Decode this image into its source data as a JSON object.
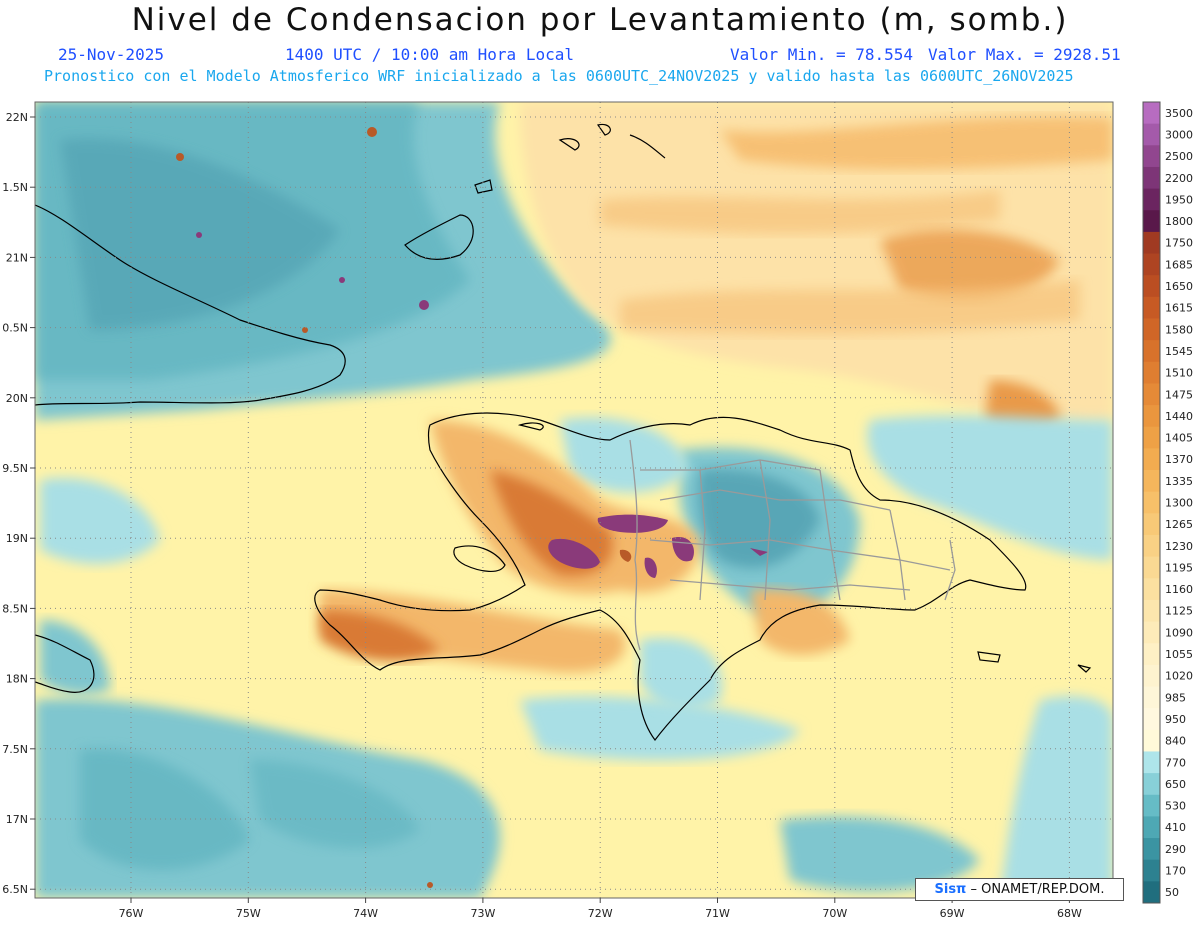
{
  "title": "Nivel de Condensacion por Levantamiento (m, somb.)",
  "header": {
    "date": "25-Nov-2025",
    "time": "1400 UTC / 10:00 am Hora Local",
    "min_label": "Valor Min. = 78.554",
    "max_label": "Valor Max. = 2928.51",
    "forecast_line": "Pronostico con el Modelo Atmosferico WRF inicializado a las 0600UTC_24NOV2025 y valido hasta las  0600UTC_26NOV2025"
  },
  "credit": {
    "brand": "Sisπ",
    "text": " – ONAMET/REP.DOM."
  },
  "axes": {
    "lat_labels": [
      "22N",
      "1.5N",
      "21N",
      "0.5N",
      "20N",
      "9.5N",
      "19N",
      "8.5N",
      "18N",
      "7.5N",
      "17N",
      "6.5N"
    ],
    "lon_labels": [
      "76W",
      "75W",
      "74W",
      "73W",
      "72W",
      "71W",
      "70W",
      "69W",
      "68W"
    ]
  },
  "legend": {
    "levels": [
      "3500",
      "3000",
      "2500",
      "2200",
      "1950",
      "1800",
      "1750",
      "1685",
      "1650",
      "1615",
      "1580",
      "1545",
      "1510",
      "1475",
      "1440",
      "1405",
      "1370",
      "1335",
      "1300",
      "1265",
      "1230",
      "1195",
      "1160",
      "1125",
      "1090",
      "1055",
      "1020",
      "985",
      "950",
      "840",
      "770",
      "650",
      "530",
      "410",
      "290",
      "170",
      "50"
    ],
    "colors": [
      "#b76cc0",
      "#a45aaa",
      "#91468f",
      "#7d3577",
      "#6b2560",
      "#59184a",
      "#a03a22",
      "#ae4422",
      "#bb4e22",
      "#c75a24",
      "#d06627",
      "#d8722b",
      "#df7e31",
      "#e58a37",
      "#ea963e",
      "#eea146",
      "#f2ac50",
      "#f5b65c",
      "#f7c069",
      "#f8c977",
      "#f9d185",
      "#fad993",
      "#fbe0a0",
      "#fce6ad",
      "#fdebb9",
      "#fef0c5",
      "#fef3cf",
      "#fef6d8",
      "#fff8df",
      "#fffad9",
      "#aee5ea",
      "#88d0d8",
      "#66bcc6",
      "#4ea8b4",
      "#3b94a2",
      "#2d8190",
      "#206e7e"
    ],
    "tick_colors": [
      "#b76cc0",
      "#a45aaa",
      "#91468f",
      "#7d3577",
      "#6b2560",
      "#59184a",
      "#a03a22",
      "#ae4422",
      "#bb4e22",
      "#c75a24",
      "#d06627",
      "#d8722b",
      "#df7e31",
      "#e58a37",
      "#ea963e",
      "#eea146",
      "#f2ac50",
      "#f5b65c",
      "#f7c069",
      "#f8c977",
      "#f9d185",
      "#fad993",
      "#fbe0a0",
      "#fce6ad",
      "#fdebb9",
      "#fef0c5",
      "#fef3cf",
      "#fef6d8",
      "#fff8df",
      "#fff0a8",
      "#aee5ea",
      "#88d0d8",
      "#66bcc6",
      "#4ea8b4",
      "#3b94a2",
      "#2d8190",
      "#206e7e"
    ]
  },
  "colors": {
    "ocean_low": "#7fc6cf",
    "ocean_mid": "#a9dfe5",
    "yellow": "#fff3a8",
    "orange": "#f3b76a",
    "orange_dark": "#d97a35",
    "brown": "#b85a28",
    "purple": "#8a3a7a",
    "coast": "#000000",
    "border": "#999999"
  }
}
